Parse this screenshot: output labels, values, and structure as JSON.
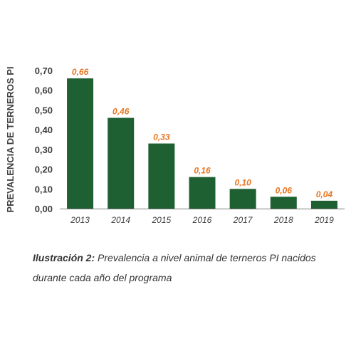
{
  "colors": {
    "bar": "#1f6033",
    "data_label": "#e87722",
    "text": "#3f3f3f",
    "axis": "#7a7a7a"
  },
  "caption": {
    "label": "Ilustración 2:",
    "text": " Prevalencia a nivel animal de terneros PI nacidos durante cada año del programa"
  },
  "chart_data": {
    "type": "bar",
    "title": "",
    "xlabel": "",
    "ylabel": "PREVALENCIA DE TERNEROS PI",
    "categories": [
      "2013",
      "2014",
      "2015",
      "2016",
      "2017",
      "2018",
      "2019"
    ],
    "values": [
      0.66,
      0.46,
      0.33,
      0.16,
      0.1,
      0.06,
      0.04
    ],
    "value_labels": [
      "0,66",
      "0,46",
      "0,33",
      "0,16",
      "0,10",
      "0,06",
      "0,04"
    ],
    "ylim": [
      0,
      0.7
    ],
    "yticks": [
      0,
      0.1,
      0.2,
      0.3,
      0.4,
      0.5,
      0.6,
      0.7
    ],
    "ytick_labels": [
      "0,00",
      "0,10",
      "0,20",
      "0,30",
      "0,40",
      "0,50",
      "0,60",
      "0,70"
    ],
    "grid": false,
    "legend": "none"
  }
}
